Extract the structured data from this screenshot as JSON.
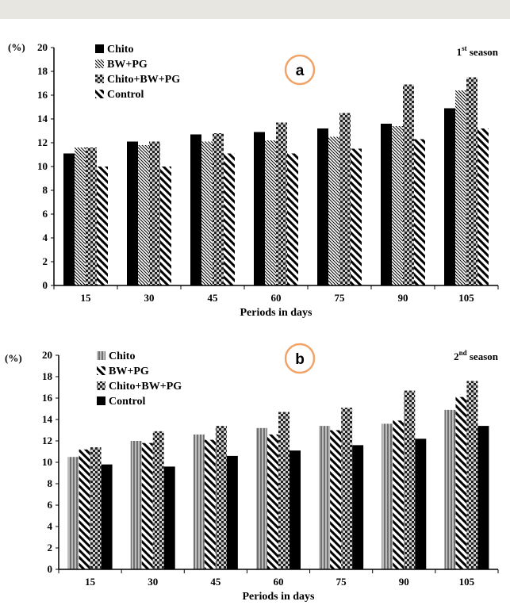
{
  "chart_data": [
    {
      "type": "bar",
      "panel_label": "a",
      "season_label": "1",
      "season_superscript": "st",
      "season_suffix": "season",
      "xlabel": "Periods in days",
      "ylabel": "(%)",
      "ylim": [
        0,
        20
      ],
      "yticks": [
        0,
        2,
        4,
        6,
        8,
        10,
        12,
        14,
        16,
        18,
        20
      ],
      "grid": false,
      "legend_position": "top-left",
      "categories": [
        "15",
        "30",
        "45",
        "60",
        "75",
        "90",
        "105"
      ],
      "series": [
        {
          "name": "Chito",
          "pattern": "solid",
          "values": [
            11.1,
            12.1,
            12.7,
            12.9,
            13.2,
            13.6,
            14.9
          ]
        },
        {
          "name": "BW+PG",
          "pattern": "fine-diagonal",
          "values": [
            11.6,
            11.8,
            12.1,
            12.2,
            12.5,
            13.4,
            16.4
          ]
        },
        {
          "name": "Chito+BW+PG",
          "pattern": "checker",
          "values": [
            11.6,
            12.1,
            12.8,
            13.7,
            14.5,
            16.9,
            17.5
          ]
        },
        {
          "name": "Control",
          "pattern": "wide-diagonal",
          "values": [
            10.0,
            10.0,
            11.1,
            11.1,
            11.5,
            12.3,
            13.2
          ]
        }
      ]
    },
    {
      "type": "bar",
      "panel_label": "b",
      "season_label": "2",
      "season_superscript": "nd",
      "season_suffix": "season",
      "xlabel": "Periods in days",
      "ylabel": "(%)",
      "ylim": [
        0,
        20
      ],
      "yticks": [
        0,
        2,
        4,
        6,
        8,
        10,
        12,
        14,
        16,
        18,
        20
      ],
      "grid": false,
      "legend_position": "top-left",
      "categories": [
        "15",
        "30",
        "45",
        "60",
        "75",
        "90",
        "105"
      ],
      "series": [
        {
          "name": "Chito",
          "pattern": "gray-vertical",
          "values": [
            10.5,
            12.0,
            12.6,
            13.2,
            13.4,
            13.6,
            14.9
          ]
        },
        {
          "name": "BW+PG",
          "pattern": "wide-diagonal",
          "values": [
            11.2,
            11.8,
            12.1,
            12.6,
            13.0,
            13.9,
            16.1
          ]
        },
        {
          "name": "Chito+BW+PG",
          "pattern": "checker",
          "values": [
            11.4,
            12.9,
            13.4,
            14.7,
            15.1,
            16.7,
            17.6
          ]
        },
        {
          "name": "Control",
          "pattern": "solid",
          "values": [
            9.8,
            9.6,
            10.6,
            11.1,
            11.6,
            12.2,
            13.4
          ]
        }
      ]
    }
  ],
  "colors": {
    "ink": "#000000",
    "panel_circle": "#f0a46a",
    "top_band": "#e8e6e1"
  }
}
